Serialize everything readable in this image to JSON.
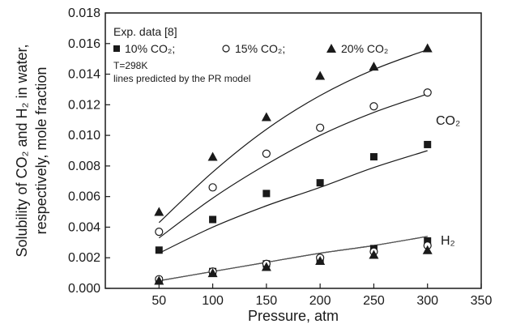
{
  "chart_data": {
    "type": "scatter",
    "xlabel": "Pressure, atm",
    "ylabel_line1": "Solubility of CO₂ and H₂ in water,",
    "ylabel_line2": "respectively, mole fraction",
    "xlim": [
      0,
      350
    ],
    "ylim": [
      0.0,
      0.018
    ],
    "xticks": [
      50,
      100,
      150,
      200,
      250,
      300,
      350
    ],
    "yticks": [
      0.0,
      0.002,
      0.004,
      0.006,
      0.008,
      0.01,
      0.012,
      0.014,
      0.016,
      0.018
    ],
    "ytick_labels": [
      "0.000",
      "0.002",
      "0.004",
      "0.006",
      "0.008",
      "0.010",
      "0.012",
      "0.014",
      "0.016",
      "0.018"
    ],
    "grid": false,
    "legend": {
      "position": "top-left",
      "title": "Exp. data [8]",
      "entries": [
        "10% CO₂;",
        "15% CO₂;",
        "20% CO₂"
      ],
      "note1": "T=298K",
      "note2": "lines predicted by the PR model"
    },
    "annotations": {
      "co2": "CO₂",
      "h2": "H₂"
    },
    "x": [
      50,
      100,
      150,
      200,
      250,
      300
    ],
    "series": [
      {
        "group": "CO2",
        "marker": "square",
        "exp": [
          0.0025,
          0.0045,
          0.0062,
          0.0069,
          0.0086,
          0.0094
        ],
        "model": [
          0.0023,
          0.004,
          0.0054,
          0.0066,
          0.0079,
          0.009
        ]
      },
      {
        "group": "CO2",
        "marker": "circle",
        "exp": [
          0.0037,
          0.0066,
          0.0088,
          0.0105,
          0.0119,
          0.0128
        ],
        "model": [
          0.0033,
          0.0059,
          0.0081,
          0.01,
          0.0115,
          0.0127
        ]
      },
      {
        "group": "CO2",
        "marker": "triangle",
        "exp": [
          0.005,
          0.0086,
          0.0112,
          0.0139,
          0.0145,
          0.0157
        ],
        "model": [
          0.0043,
          0.0076,
          0.0104,
          0.0126,
          0.0143,
          0.0156
        ]
      },
      {
        "group": "H2",
        "marker": "square",
        "exp": [
          0.0005,
          0.0011,
          0.0016,
          0.0019,
          0.0026,
          0.0031
        ],
        "model": [
          0.0005,
          0.0011,
          0.0017,
          0.0023,
          0.0028,
          0.0034
        ]
      },
      {
        "group": "H2",
        "marker": "circle",
        "exp": [
          0.0006,
          0.0011,
          0.0016,
          0.002,
          0.0024,
          0.0028
        ],
        "model": [
          0.0005,
          0.0011,
          0.0017,
          0.0023,
          0.0028,
          0.0034
        ]
      },
      {
        "group": "H2",
        "marker": "triangle",
        "exp": [
          0.0005,
          0.001,
          0.0014,
          0.0018,
          0.0022,
          0.0025
        ],
        "model": [
          0.0005,
          0.0011,
          0.0017,
          0.0023,
          0.0028,
          0.0034
        ]
      }
    ]
  }
}
